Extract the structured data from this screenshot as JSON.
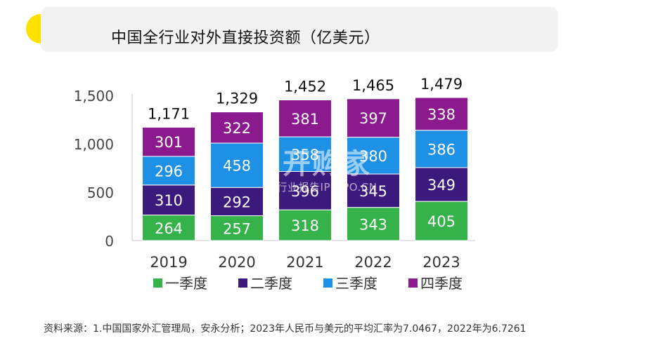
{
  "title": "中国全行业对外直接投资额（亿美元）",
  "source_note": "资料来源：1.中国国家外汇管理局，安永分析；2023年人民币与美元的平均汇率为7.0467，2022年为6.7261",
  "watermark": {
    "brand": "开购家",
    "sub": "行业报告IPOIPO.CN"
  },
  "colors": {
    "accent": "#ffe100",
    "title_bg": "#f2f2f2"
  },
  "chart_data": {
    "type": "bar",
    "stacked": true,
    "categories": [
      "2019",
      "2020",
      "2021",
      "2022",
      "2023"
    ],
    "series": [
      {
        "name": "一季度",
        "values": [
          264,
          257,
          318,
          343,
          405
        ],
        "color": "#35b34a"
      },
      {
        "name": "二季度",
        "values": [
          310,
          292,
          396,
          345,
          349
        ],
        "color": "#3c1a7d"
      },
      {
        "name": "三季度",
        "values": [
          296,
          458,
          358,
          380,
          386
        ],
        "color": "#1e90e6"
      },
      {
        "name": "四季度",
        "values": [
          301,
          322,
          381,
          397,
          338
        ],
        "color": "#8b1a8f"
      }
    ],
    "totals": [
      "1,171",
      "1,329",
      "1,452",
      "1,465",
      "1,479"
    ],
    "y_ticks": [
      "0",
      "500",
      "1,000",
      "1,500"
    ],
    "y_tick_values": [
      0,
      500,
      1000,
      1500
    ],
    "ylim": [
      0,
      1500
    ],
    "legend": "bottom",
    "grid": false
  }
}
